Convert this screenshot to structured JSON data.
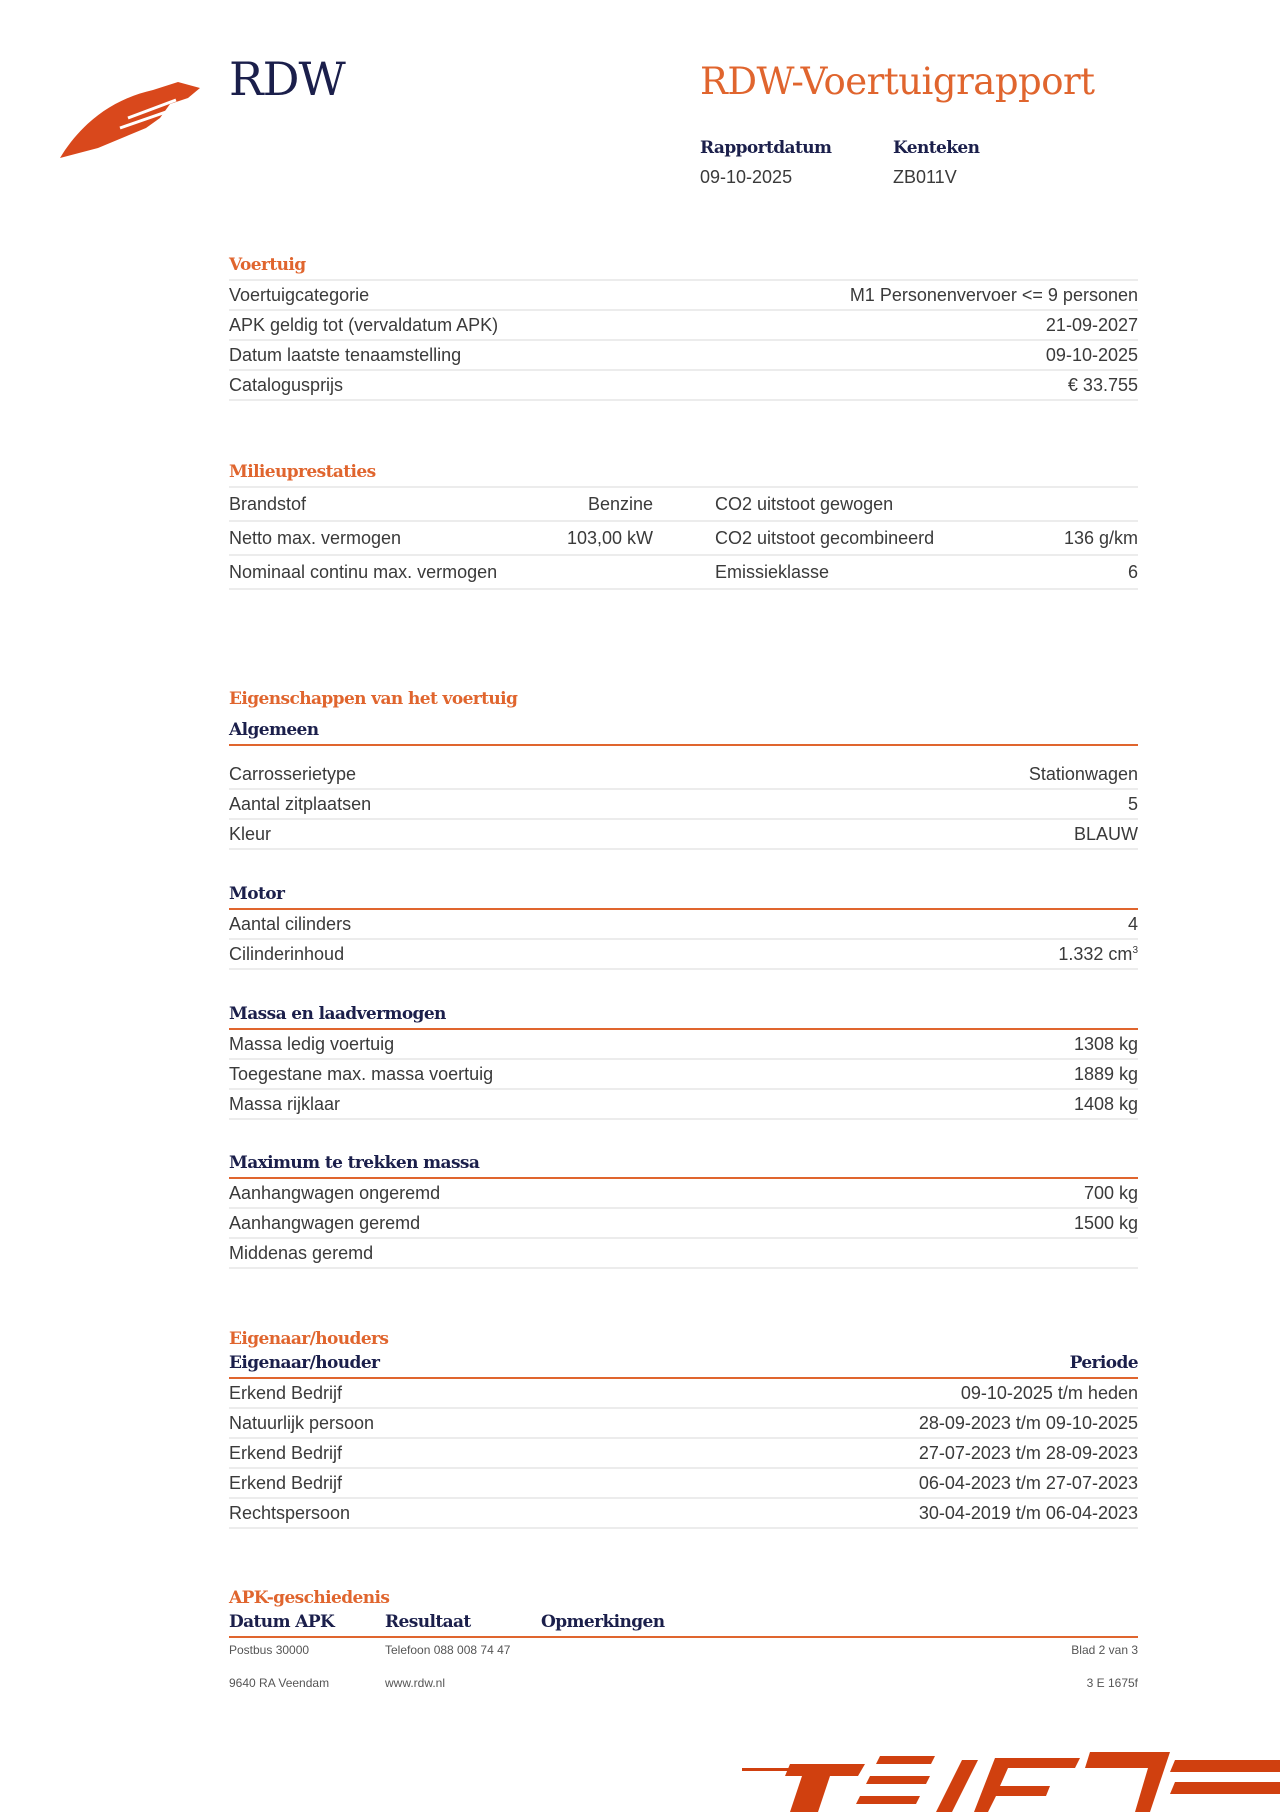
{
  "header": {
    "brand": "RDW",
    "title": "RDW-Voertuigrapport",
    "rapportdatum_label": "Rapportdatum",
    "rapportdatum": "09-10-2025",
    "kenteken_label": "Kenteken",
    "kenteken": "ZB011V",
    "colors": {
      "accent": "#e0652e",
      "navy": "#1b1f4b"
    }
  },
  "voertuig": {
    "title": "Voertuig",
    "rows": [
      {
        "label": "Voertuigcategorie",
        "value": "M1 Personenvervoer <= 9 personen"
      },
      {
        "label": "APK geldig tot (vervaldatum APK)",
        "value": "21-09-2027"
      },
      {
        "label": "Datum laatste tenaamstelling",
        "value": "09-10-2025"
      },
      {
        "label": "Catalogusprijs",
        "value": "€ 33.755"
      }
    ]
  },
  "milieu": {
    "title": "Milieuprestaties",
    "rows": [
      {
        "label1": "Brandstof",
        "value1": "Benzine",
        "label2": "CO2 uitstoot gewogen",
        "value2": ""
      },
      {
        "label1": "Netto max. vermogen",
        "value1": "103,00 kW",
        "label2": "CO2 uitstoot gecombineerd",
        "value2": "136 g/km"
      },
      {
        "label1": "Nominaal continu max. vermogen",
        "value1": "",
        "label2": "Emissieklasse",
        "value2": "6"
      }
    ]
  },
  "eigenschappen": {
    "title": "Eigenschappen van het voertuig",
    "algemeen": {
      "title": "Algemeen",
      "rows": [
        {
          "label": "Carrosserietype",
          "value": "Stationwagen"
        },
        {
          "label": "Aantal zitplaatsen",
          "value": "5"
        },
        {
          "label": "Kleur",
          "value": "BLAUW"
        }
      ]
    },
    "motor": {
      "title": "Motor",
      "rows": [
        {
          "label": "Aantal cilinders",
          "value": "4"
        },
        {
          "label": "Cilinderinhoud",
          "value": "1.332 cm",
          "unit_sup": "3"
        }
      ]
    },
    "massa": {
      "title": "Massa en laadvermogen",
      "rows": [
        {
          "label": "Massa ledig voertuig",
          "value": "1308 kg"
        },
        {
          "label": "Toegestane max. massa voertuig",
          "value": "1889 kg"
        },
        {
          "label": "Massa rijklaar",
          "value": "1408 kg"
        }
      ]
    },
    "trekken": {
      "title": "Maximum te trekken massa",
      "rows": [
        {
          "label": "Aanhangwagen ongeremd",
          "value": "700 kg"
        },
        {
          "label": "Aanhangwagen geremd",
          "value": "1500 kg"
        },
        {
          "label": "Middenas geremd",
          "value": ""
        }
      ]
    }
  },
  "eigenaren": {
    "title": "Eigenaar/houders",
    "col1": "Eigenaar/houder",
    "col2": "Periode",
    "rows": [
      {
        "label": "Erkend Bedrijf",
        "value": "09-10-2025 t/m heden"
      },
      {
        "label": "Natuurlijk persoon",
        "value": "28-09-2023 t/m 09-10-2025"
      },
      {
        "label": "Erkend Bedrijf",
        "value": "27-07-2023 t/m 28-09-2023"
      },
      {
        "label": "Erkend Bedrijf",
        "value": "06-04-2023 t/m 27-07-2023"
      },
      {
        "label": "Rechtspersoon",
        "value": "30-04-2019 t/m 06-04-2023"
      }
    ]
  },
  "apk": {
    "title": "APK-geschiedenis",
    "col1": "Datum APK",
    "col2": "Resultaat",
    "col3": "Opmerkingen"
  },
  "footer": {
    "postbus": "Postbus 30000",
    "telefoon": "Telefoon 088 008 74 47",
    "blad": "Blad 2 van 3",
    "adres": "9640 RA Veendam",
    "website": "www.rdw.nl",
    "code": "3 E 1675f"
  }
}
